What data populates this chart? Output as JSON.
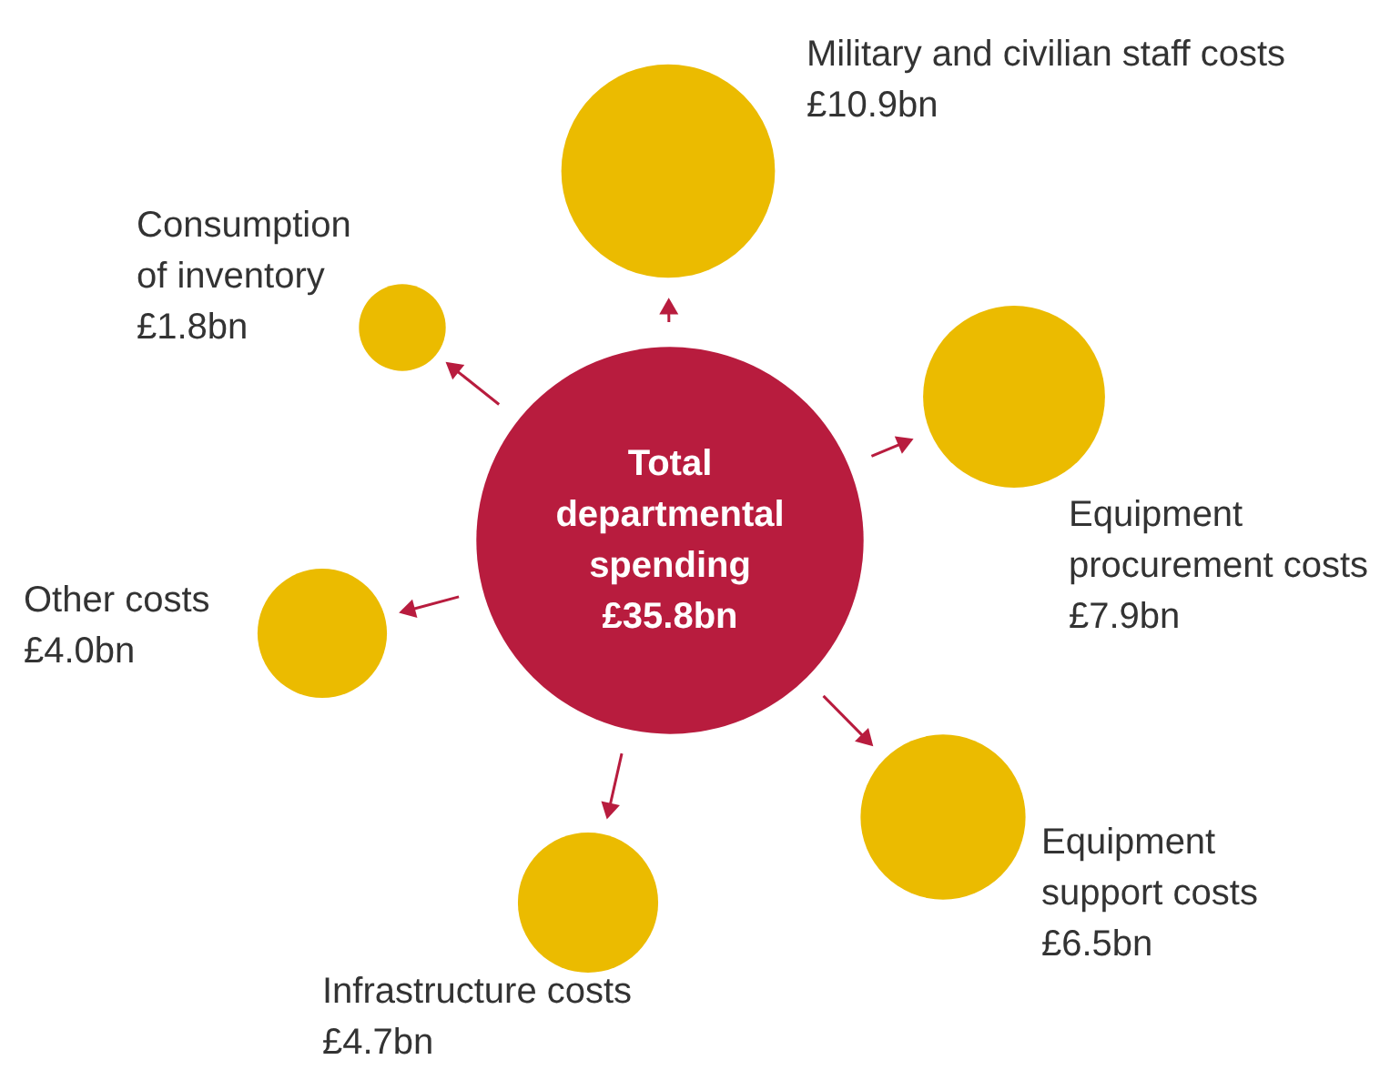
{
  "chart_data": {
    "type": "other",
    "categories": [
      "Total departmental spending",
      "Military and civilian staff costs",
      "Equipment procurement costs",
      "Equipment support costs",
      "Infrastructure costs",
      "Other costs",
      "Consumption of inventory"
    ],
    "values": [
      35.8,
      10.9,
      7.9,
      6.5,
      4.7,
      4.0,
      1.8
    ],
    "value_labels": [
      "£35.8bn",
      "£10.9bn",
      "£7.9bn",
      "£6.5bn",
      "£4.7bn",
      "£4.0bn",
      "£1.8bn"
    ],
    "colors": [
      "#b81c3e",
      "#ebbb00",
      "#ebbb00",
      "#ebbb00",
      "#ebbb00",
      "#ebbb00",
      "#ebbb00"
    ]
  }
}
